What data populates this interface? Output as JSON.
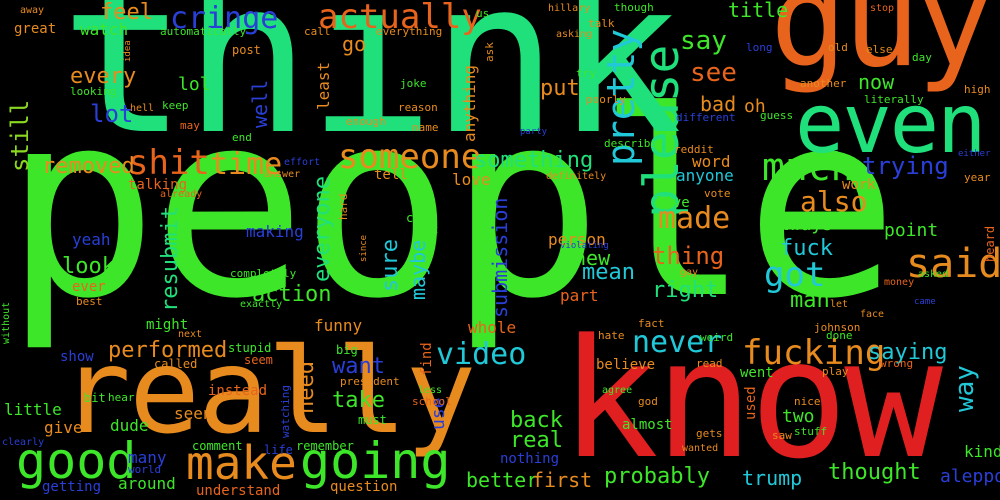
{
  "words": {
    "people": "people",
    "think": "think",
    "guy": "guy",
    "know": "know",
    "really": "really",
    "even": "even",
    "please": "please",
    "good": "good",
    "make": "make",
    "going": "going",
    "someone": "someone",
    "shit": "shit",
    "time": "time",
    "much": "much",
    "said": "said",
    "actually": "actually",
    "cringe": "cringe",
    "feel": "feel",
    "still": "still",
    "every": "every",
    "lot": "lot",
    "removed": "removed",
    "pretty": "pretty",
    "see": "see",
    "say": "say",
    "something": "something",
    "made": "made",
    "got": "got",
    "also": "also",
    "never": "never",
    "fucking": "fucking",
    "video": "video",
    "saying": "saying",
    "trying": "trying",
    "thing": "thing",
    "right": "right",
    "action": "action",
    "look": "look",
    "resubmit": "resubmit",
    "everyone": "everyone",
    "submission": "submission",
    "maybe": "maybe",
    "sure": "sure",
    "mean": "mean",
    "new": "new",
    "fuck": "fuck",
    "man": "man",
    "way": "way",
    "performed": "performed",
    "want": "want",
    "need": "need",
    "take": "take",
    "real": "real",
    "back": "back",
    "better": "better",
    "first": "first",
    "probably": "probably",
    "thought": "thought",
    "trump": "trump",
    "aleppo": "aleppo",
    "title": "title",
    "put": "put",
    "bad": "bad",
    "oh": "oh",
    "now": "now",
    "well": "well",
    "lol": "lol",
    "go": "go",
    "watch": "watch",
    "great": "great",
    "least": "least",
    "anything": "anything",
    "word": "word",
    "anyone": "anyone",
    "always": "always",
    "point": "point",
    "yeah": "yeah",
    "making": "making",
    "ever": "ever",
    "might": "might",
    "funny": "funny",
    "whole": "whole",
    "part": "part",
    "person": "person",
    "little": "little",
    "give": "give",
    "dude": "dude",
    "seen": "seen",
    "many": "many",
    "around": "around",
    "getting": "getting",
    "understand": "understand",
    "question": "question",
    "nothing": "nothing",
    "two": "two",
    "kind": "kind",
    "use": "use",
    "believe": "believe",
    "went": "went",
    "talking": "talking",
    "tell": "tell",
    "love": "love",
    "work": "work",
    "live": "live",
    "heard": "heard",
    "show": "show",
    "instead": "instead",
    "seem": "seem",
    "stupid": "stupid",
    "big": "big",
    "president": "president",
    "called": "called",
    "bit": "bit",
    "hear": "hear",
    "comment": "comment",
    "life": "life",
    "world": "world",
    "must": "must",
    "school": "school",
    "less": "less",
    "agree": "agree",
    "remember": "remember",
    "watching": "watching",
    "find": "find",
    "used": "used",
    "almost": "almost",
    "wanted": "wanted",
    "gets": "gets",
    "saw": "saw",
    "stuff": "stuff",
    "nice": "nice",
    "play": "play",
    "wrong": "wrong",
    "read": "read",
    "god": "god",
    "weird": "weird",
    "fact": "fact",
    "hate": "hate",
    "johnson": "johnson",
    "done": "done",
    "face": "face",
    "let": "let",
    "came": "came",
    "money": "money",
    "asked": "asked",
    "gay": "gay",
    "violating": "violating",
    "last": "last",
    "come": "come",
    "since": "since",
    "hard": "hard",
    "definitely": "definitely",
    "reddit": "reddit",
    "describe": "describe",
    "vote": "vote",
    "year": "year",
    "either": "either",
    "hillary": "hillary",
    "though": "though",
    "talk": "talk",
    "asking": "asking",
    "stop": "stop",
    "else": "else",
    "day": "day",
    "old": "old",
    "another": "another",
    "long": "long",
    "high": "high",
    "literally": "literally",
    "guess": "guess",
    "poorly": "poorly",
    "different": "different",
    "try": "try",
    "party": "party",
    "reason": "reason",
    "joke": "joke",
    "name": "name",
    "enough": "enough",
    "ask": "ask",
    "us": "us",
    "everything": "everything",
    "call": "call",
    "automatically": "automatically",
    "post": "post",
    "idea": "idea",
    "away": "away",
    "looking": "looking",
    "hell": "hell",
    "keep": "keep",
    "may": "may",
    "end": "end",
    "effort": "effort",
    "answer": "answer",
    "already": "already",
    "without": "without",
    "best": "best",
    "completely": "completely",
    "exactly": "exactly",
    "next": "next",
    "clearly": "clearly"
  },
  "colors": {
    "green": "#3ee62a",
    "mint": "#1fe07a",
    "orange": "#e8641c",
    "amber": "#e88b1f",
    "red": "#e02020",
    "blue": "#2a3fd8",
    "teal": "#24d2a0",
    "cyan": "#20c8d8",
    "lime": "#8ad820"
  }
}
